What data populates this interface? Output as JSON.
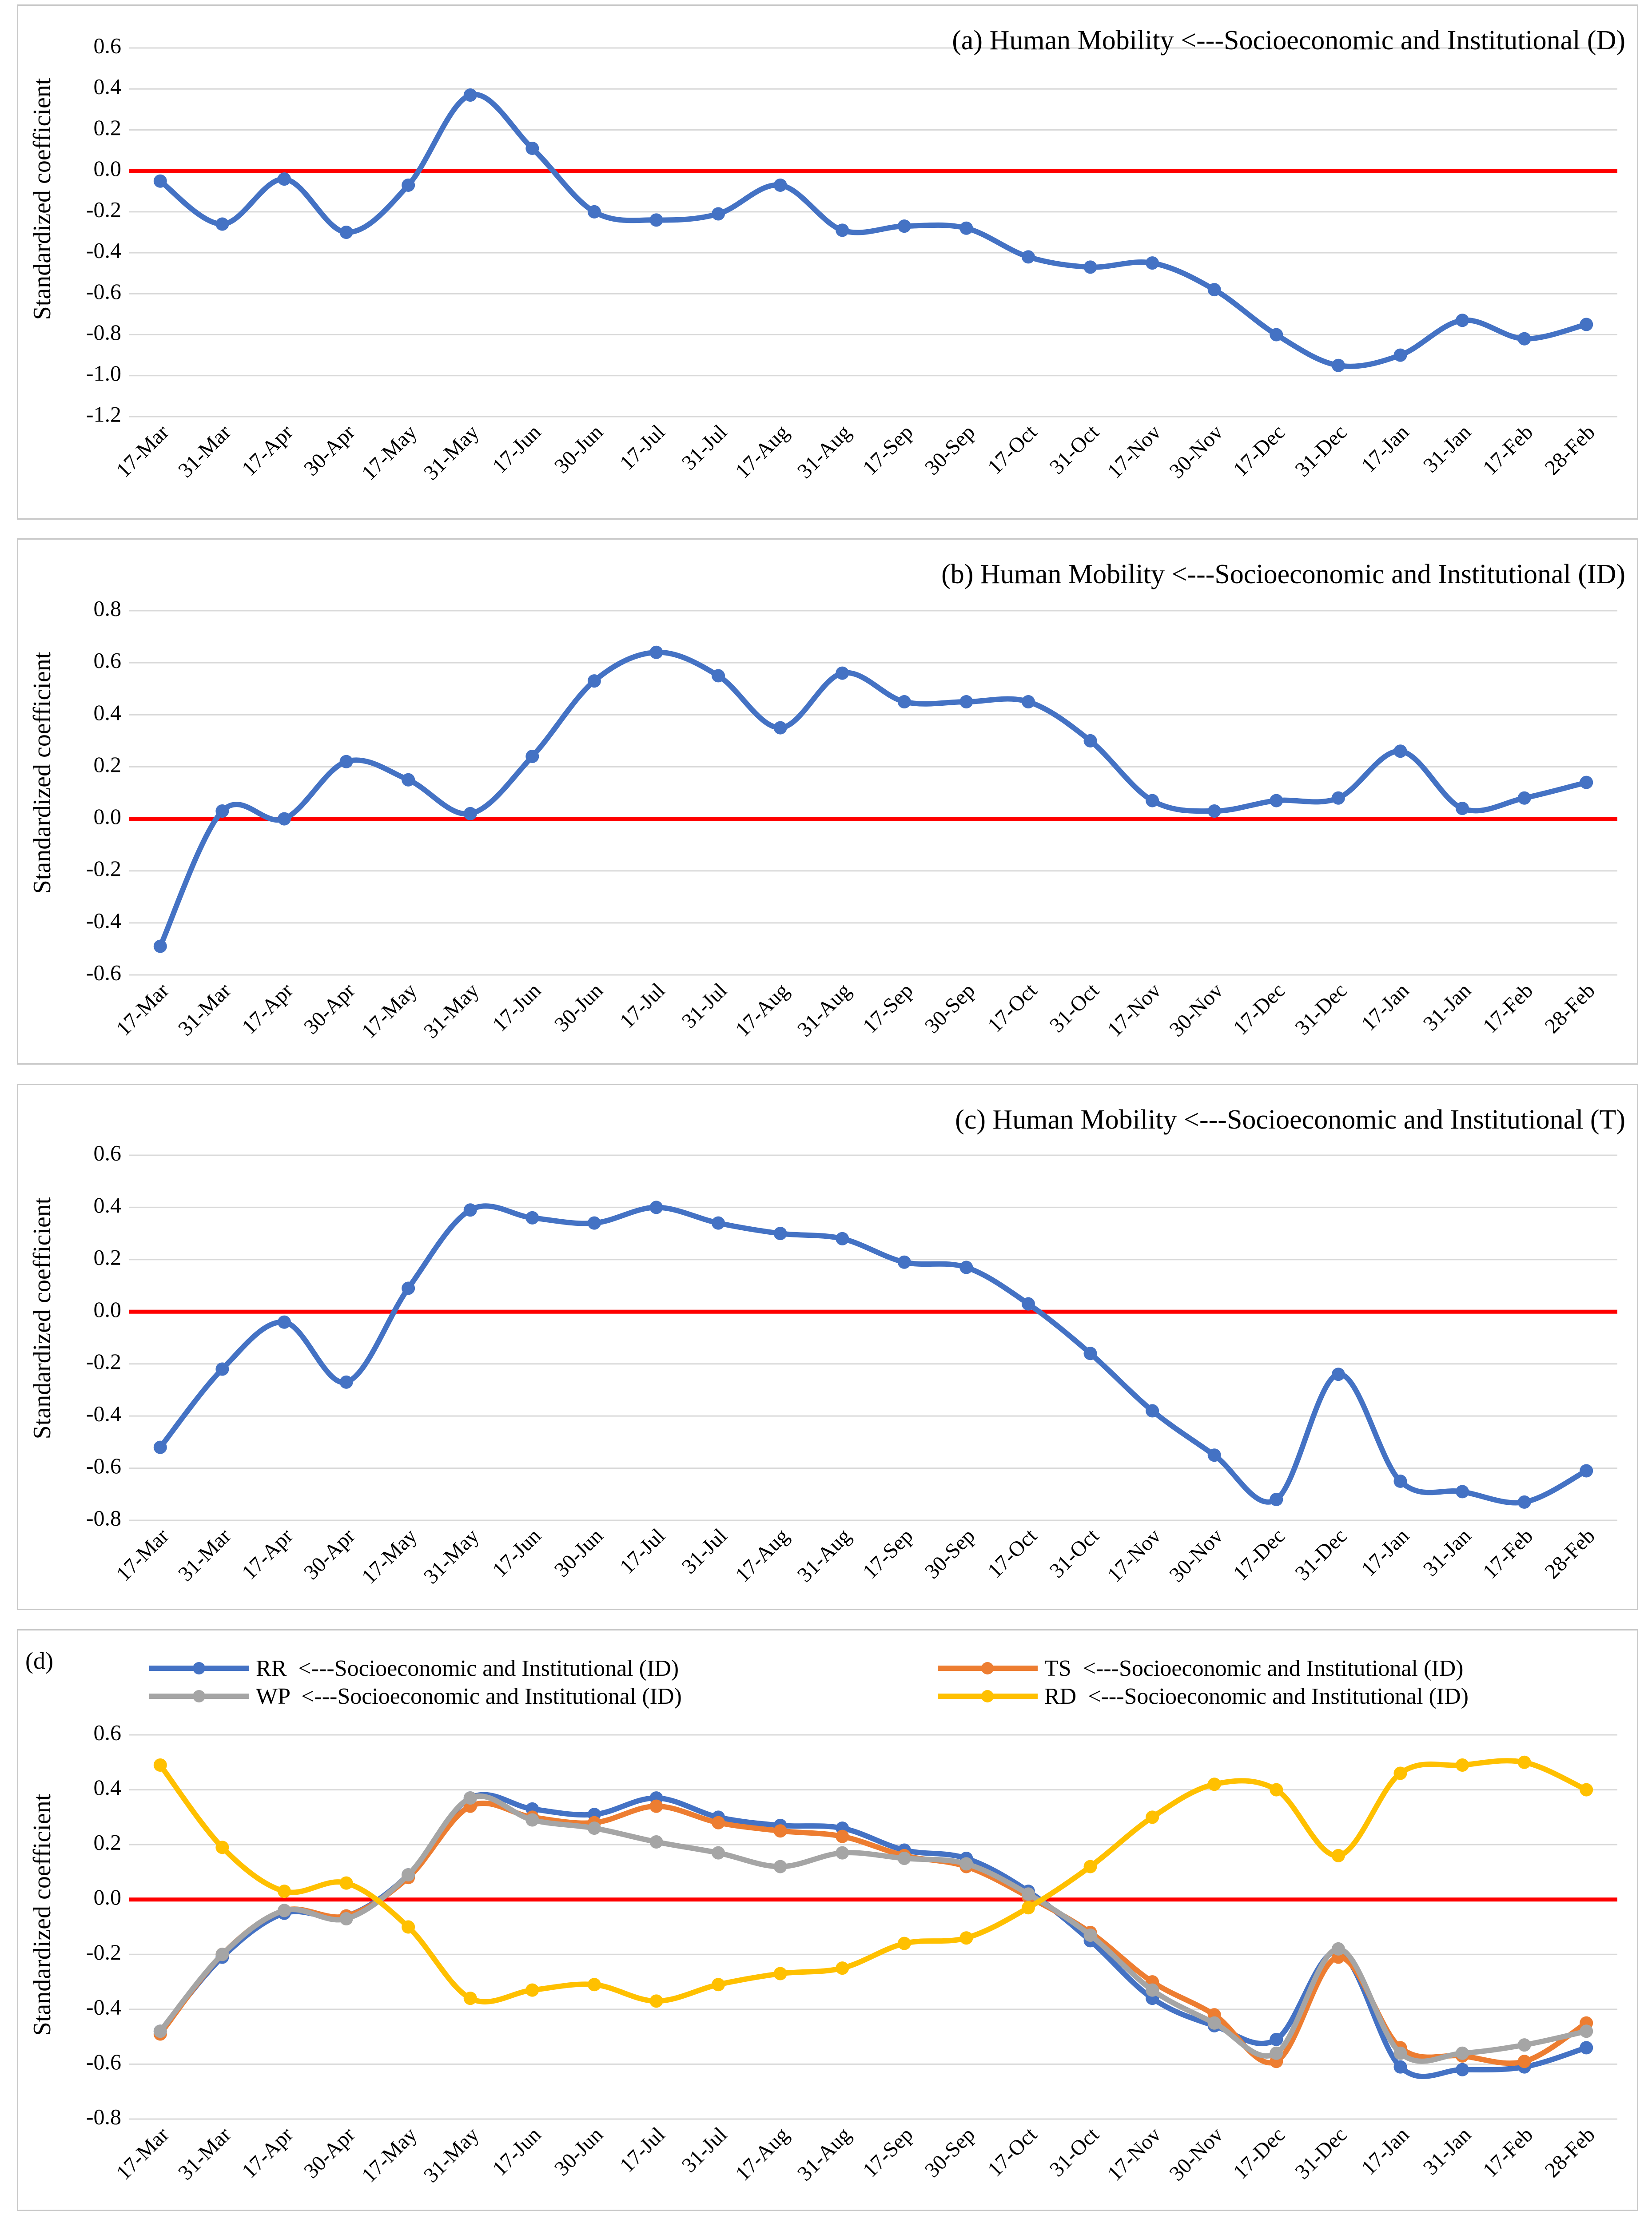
{
  "chart_data": [
    {
      "panel": "a",
      "type": "line",
      "title": "(a) Human Mobility <---Socioeconomic and Institutional (D)",
      "ylabel": "Standardized coefficient",
      "xlabel": "",
      "ylim": [
        -1.2,
        0.6
      ],
      "yticks": [
        "0.6",
        "0.4",
        "0.2",
        "0.0",
        "-0.2",
        "-0.4",
        "-0.6",
        "-0.8",
        "-1.0",
        "-1.2"
      ],
      "ytick_values": [
        0.6,
        0.4,
        0.2,
        0.0,
        -0.2,
        -0.4,
        -0.6,
        -0.8,
        -1.0,
        -1.2
      ],
      "categories": [
        "17-Mar",
        "31-Mar",
        "17-Apr",
        "30-Apr",
        "17-May",
        "31-May",
        "17-Jun",
        "30-Jun",
        "17-Jul",
        "31-Jul",
        "17-Aug",
        "31-Aug",
        "17-Sep",
        "30-Sep",
        "17-Oct",
        "31-Oct",
        "17-Nov",
        "30-Nov",
        "17-Dec",
        "31-Dec",
        "17-Jan",
        "31-Jan",
        "17-Feb",
        "28-Feb"
      ],
      "series": [
        {
          "name": "Human Mobility (D)",
          "color": "#4472c4",
          "values": [
            -0.05,
            -0.26,
            -0.04,
            -0.3,
            -0.07,
            0.37,
            0.11,
            -0.2,
            -0.24,
            -0.21,
            -0.07,
            -0.29,
            -0.27,
            -0.28,
            -0.42,
            -0.47,
            -0.45,
            -0.58,
            -0.8,
            -0.95,
            -0.9,
            -0.73,
            -0.82,
            -0.75
          ]
        }
      ]
    },
    {
      "panel": "b",
      "type": "line",
      "title": "(b) Human Mobility <---Socioeconomic and Institutional (ID)",
      "ylabel": "Standardized coefficient",
      "xlabel": "",
      "ylim": [
        -0.6,
        0.8
      ],
      "yticks": [
        "0.8",
        "0.6",
        "0.4",
        "0.2",
        "0.0",
        "-0.2",
        "-0.4",
        "-0.6"
      ],
      "ytick_values": [
        0.8,
        0.6,
        0.4,
        0.2,
        0.0,
        -0.2,
        -0.4,
        -0.6
      ],
      "categories": [
        "17-Mar",
        "31-Mar",
        "17-Apr",
        "30-Apr",
        "17-May",
        "31-May",
        "17-Jun",
        "30-Jun",
        "17-Jul",
        "31-Jul",
        "17-Aug",
        "31-Aug",
        "17-Sep",
        "30-Sep",
        "17-Oct",
        "31-Oct",
        "17-Nov",
        "30-Nov",
        "17-Dec",
        "31-Dec",
        "17-Jan",
        "31-Jan",
        "17-Feb",
        "28-Feb"
      ],
      "series": [
        {
          "name": "Human Mobility (ID)",
          "color": "#4472c4",
          "values": [
            -0.49,
            0.03,
            0.0,
            0.22,
            0.15,
            0.02,
            0.24,
            0.53,
            0.64,
            0.55,
            0.35,
            0.56,
            0.45,
            0.45,
            0.45,
            0.3,
            0.07,
            0.03,
            0.07,
            0.08,
            0.26,
            0.04,
            0.08,
            0.14
          ]
        }
      ]
    },
    {
      "panel": "c",
      "type": "line",
      "title": "(c) Human Mobility <---Socioeconomic and Institutional (T)",
      "ylabel": "Standardized coefficient",
      "xlabel": "",
      "ylim": [
        -0.8,
        0.6
      ],
      "yticks": [
        "0.6",
        "0.4",
        "0.2",
        "0.0",
        "-0.2",
        "-0.4",
        "-0.6",
        "-0.8"
      ],
      "ytick_values": [
        0.6,
        0.4,
        0.2,
        0.0,
        -0.2,
        -0.4,
        -0.6,
        -0.8
      ],
      "categories": [
        "17-Mar",
        "31-Mar",
        "17-Apr",
        "30-Apr",
        "17-May",
        "31-May",
        "17-Jun",
        "30-Jun",
        "17-Jul",
        "31-Jul",
        "17-Aug",
        "31-Aug",
        "17-Sep",
        "30-Sep",
        "17-Oct",
        "31-Oct",
        "17-Nov",
        "30-Nov",
        "17-Dec",
        "31-Dec",
        "17-Jan",
        "31-Jan",
        "17-Feb",
        "28-Feb"
      ],
      "series": [
        {
          "name": "Human Mobility (T)",
          "color": "#4472c4",
          "values": [
            -0.52,
            -0.22,
            -0.04,
            -0.27,
            0.09,
            0.39,
            0.36,
            0.34,
            0.4,
            0.34,
            0.3,
            0.28,
            0.19,
            0.17,
            0.03,
            -0.16,
            -0.38,
            -0.55,
            -0.72,
            -0.24,
            -0.65,
            -0.69,
            -0.73,
            -0.61
          ]
        }
      ]
    },
    {
      "panel": "d",
      "type": "line",
      "title": "",
      "panel_label": "(d)",
      "ylabel": "Standardized coefficient",
      "xlabel": "",
      "ylim": [
        -0.8,
        0.6
      ],
      "yticks": [
        "0.6",
        "0.4",
        "0.2",
        "0.0",
        "-0.2",
        "-0.4",
        "-0.6",
        "-0.8"
      ],
      "ytick_values": [
        0.6,
        0.4,
        0.2,
        0.0,
        -0.2,
        -0.4,
        -0.6,
        -0.8
      ],
      "categories": [
        "17-Mar",
        "31-Mar",
        "17-Apr",
        "30-Apr",
        "17-May",
        "31-May",
        "17-Jun",
        "30-Jun",
        "17-Jul",
        "31-Jul",
        "17-Aug",
        "31-Aug",
        "17-Sep",
        "30-Sep",
        "17-Oct",
        "31-Oct",
        "17-Nov",
        "30-Nov",
        "17-Dec",
        "31-Dec",
        "17-Jan",
        "31-Jan",
        "17-Feb",
        "28-Feb"
      ],
      "series": [
        {
          "name": "RR  <---Socioeconomic and Institutional (ID)",
          "color": "#4472c4",
          "values": [
            -0.48,
            -0.21,
            -0.05,
            -0.06,
            0.09,
            0.37,
            0.33,
            0.31,
            0.37,
            0.3,
            0.27,
            0.26,
            0.18,
            0.15,
            0.03,
            -0.15,
            -0.36,
            -0.46,
            -0.51,
            -0.19,
            -0.61,
            -0.62,
            -0.61,
            -0.54
          ]
        },
        {
          "name": "TS  <---Socioeconomic and Institutional (ID)",
          "color": "#ed7d31",
          "values": [
            -0.49,
            -0.2,
            -0.04,
            -0.06,
            0.08,
            0.34,
            0.3,
            0.28,
            0.34,
            0.28,
            0.25,
            0.23,
            0.16,
            0.12,
            0.01,
            -0.12,
            -0.3,
            -0.42,
            -0.59,
            -0.21,
            -0.54,
            -0.57,
            -0.59,
            -0.45
          ]
        },
        {
          "name": "WP  <---Socioeconomic and Institutional (ID)",
          "color": "#a5a5a5",
          "values": [
            -0.48,
            -0.2,
            -0.04,
            -0.07,
            0.09,
            0.37,
            0.29,
            0.26,
            0.21,
            0.17,
            0.12,
            0.17,
            0.15,
            0.13,
            0.02,
            -0.13,
            -0.33,
            -0.45,
            -0.56,
            -0.18,
            -0.56,
            -0.56,
            -0.53,
            -0.48
          ]
        },
        {
          "name": "RD  <---Socioeconomic and Institutional (ID)",
          "color": "#ffc000",
          "values": [
            0.49,
            0.19,
            0.03,
            0.06,
            -0.1,
            -0.36,
            -0.33,
            -0.31,
            -0.37,
            -0.31,
            -0.27,
            -0.25,
            -0.16,
            -0.14,
            -0.03,
            0.12,
            0.3,
            0.42,
            0.4,
            0.16,
            0.46,
            0.49,
            0.5,
            0.4
          ]
        }
      ]
    }
  ]
}
